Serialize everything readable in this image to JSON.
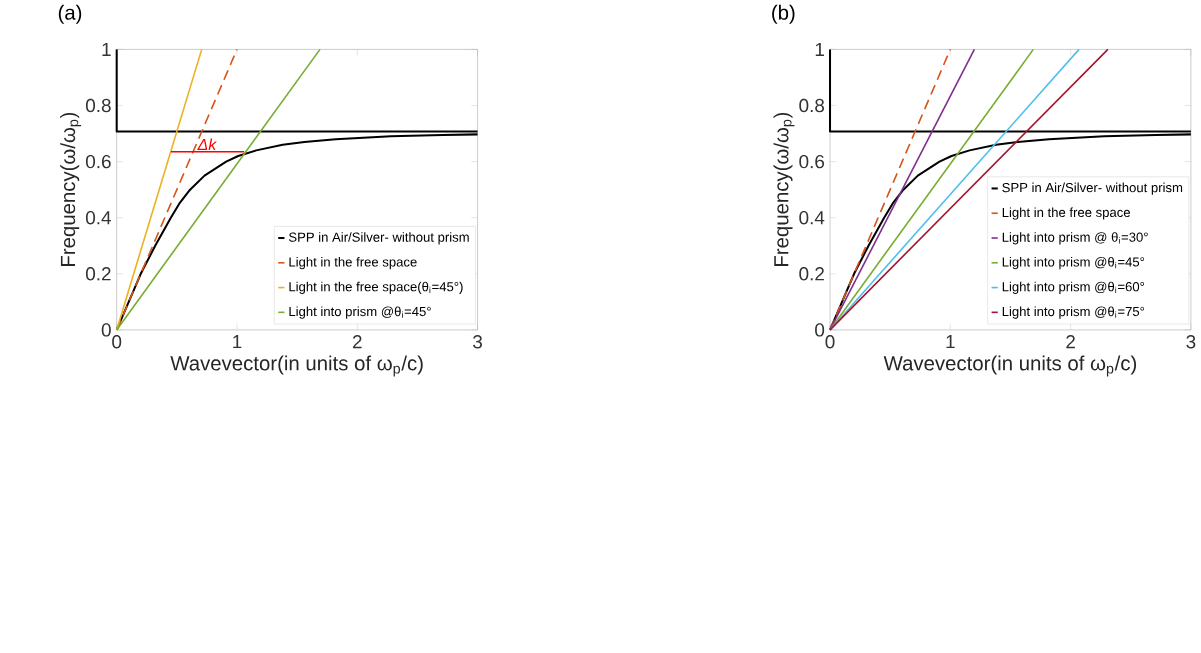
{
  "chart_data": [
    {
      "type": "line",
      "title": "(a)",
      "xlabel": "Wavevector(in units of ω$_{p}$/c)",
      "ylabel": "Frequency(ω/ω$_{p}$)",
      "xlim": [
        0,
        3
      ],
      "ylim": [
        0,
        1
      ],
      "xticks": [
        0,
        1,
        2,
        3
      ],
      "yticks": [
        0,
        0.2,
        0.4,
        0.6,
        0.8,
        1
      ],
      "legend": "bottom right",
      "marker": "none",
      "grid": false,
      "annotations": [
        {
          "text": "Δk",
          "x": 0.75,
          "y": 0.635
        }
      ],
      "series": [
        {
          "name": "SPP in Air/Silver- without prism",
          "color": "#000000",
          "x": [
            0,
            0.1,
            0.2,
            0.32,
            0.45,
            0.52,
            0.61,
            0.73,
            0.91,
            1.01,
            1.16,
            1.38,
            1.56,
            1.82,
            2.28,
            2.71,
            3
          ],
          "values": [
            0,
            0.1,
            0.2,
            0.3,
            0.4,
            0.45,
            0.5,
            0.55,
            0.6,
            0.62,
            0.64,
            0.66,
            0.67,
            0.68,
            0.69,
            0.695,
            0.697
          ]
        },
        {
          "color": "#000000",
          "x": [
            0,
            0,
            3
          ],
          "values": [
            1,
            0.707,
            0.707
          ]
        },
        {
          "name": "Light in the free space",
          "color": "#d95319",
          "line_style": "dashed",
          "x": [
            0,
            1
          ],
          "values": [
            0,
            1
          ]
        },
        {
          "name": "Light in the free space(θ$_{i}$=45°)",
          "color": "#edb120",
          "x": [
            0,
            0.707
          ],
          "values": [
            0,
            1
          ]
        },
        {
          "name": "Light into prism @θ$_{i}$=45°",
          "color": "#77ac30",
          "x": [
            0,
            1.69
          ],
          "values": [
            0,
            1
          ]
        },
        {
          "color": "#ff0000",
          "x": [
            0.45,
            1.06
          ],
          "values": [
            0.635,
            0.635
          ]
        }
      ]
    },
    {
      "type": "line",
      "title": "(b)",
      "xlabel": "Wavevector(in units of ω$_{p}$/c)",
      "ylabel": "Frequency(ω/ω$_{p}$)",
      "xlim": [
        0,
        3
      ],
      "ylim": [
        0,
        1
      ],
      "xticks": [
        0,
        1,
        2,
        3
      ],
      "yticks": [
        0,
        0.2,
        0.4,
        0.6,
        0.8,
        1
      ],
      "legend": "bottom right",
      "marker": "none",
      "grid": false,
      "series": [
        {
          "name": "SPP in Air/Silver- without prism",
          "color": "#000000",
          "x": [
            0,
            0.1,
            0.2,
            0.32,
            0.45,
            0.52,
            0.61,
            0.73,
            0.91,
            1.01,
            1.16,
            1.38,
            1.56,
            1.82,
            2.28,
            2.71,
            3
          ],
          "values": [
            0,
            0.1,
            0.2,
            0.3,
            0.4,
            0.45,
            0.5,
            0.55,
            0.6,
            0.62,
            0.64,
            0.66,
            0.67,
            0.68,
            0.69,
            0.695,
            0.697
          ]
        },
        {
          "color": "#000000",
          "x": [
            0,
            0,
            3
          ],
          "values": [
            1,
            0.707,
            0.707
          ]
        },
        {
          "name": "Light in the free space",
          "color": "#d95319",
          "line_style": "dashed",
          "x": [
            0,
            1
          ],
          "values": [
            0,
            1
          ]
        },
        {
          "name": "Light into prism @ θ$_{i}$=30°",
          "color": "#7e2f8e",
          "x": [
            0,
            1.2
          ],
          "values": [
            0,
            1
          ]
        },
        {
          "name": "Light into prism @θ$_{i}$=45°",
          "color": "#77ac30",
          "x": [
            0,
            1.69
          ],
          "values": [
            0,
            1
          ]
        },
        {
          "name": "Light into prism @θ$_{i}$=60°",
          "color": "#4dbeee",
          "x": [
            0,
            2.07
          ],
          "values": [
            0,
            1
          ]
        },
        {
          "name": "Light into prism @θ$_{i}$=75°",
          "color": "#a2142f",
          "x": [
            0,
            2.31
          ],
          "values": [
            0,
            1
          ]
        }
      ]
    }
  ]
}
